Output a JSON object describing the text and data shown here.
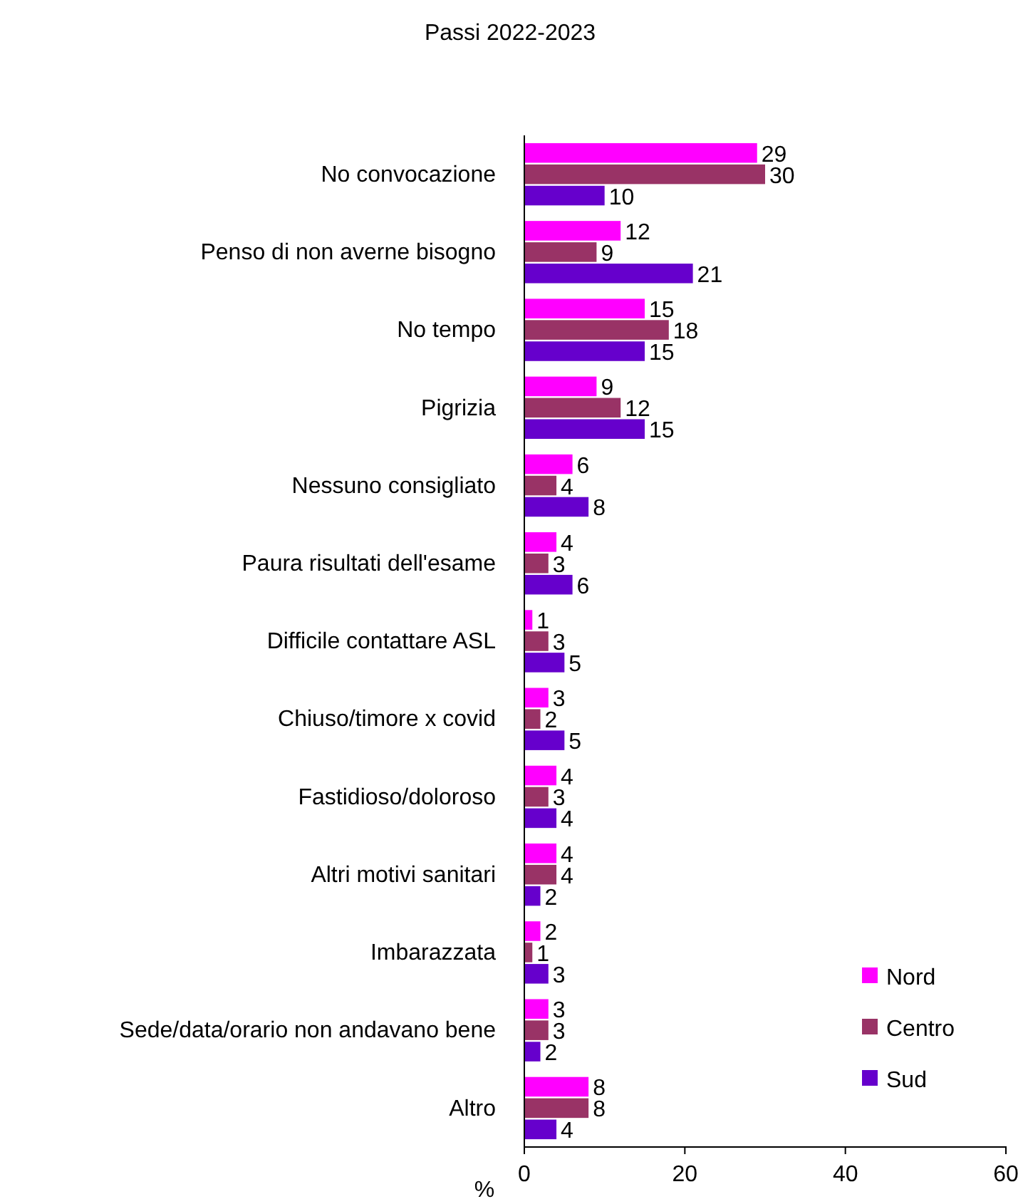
{
  "chart_data": {
    "type": "bar",
    "orientation": "horizontal",
    "title": "Passi 2022-2023",
    "xlabel": "%",
    "categories": [
      "No convocazione",
      "Penso di non averne bisogno",
      "No tempo",
      "Pigrizia",
      "Nessuno consigliato",
      "Paura risultati dell'esame",
      "Difficile contattare ASL",
      "Chiuso/timore x covid",
      "Fastidioso/doloroso",
      "Altri motivi sanitari",
      "Imbarazzata",
      "Sede/data/orario non andavano bene",
      "Altro"
    ],
    "series": [
      {
        "name": "Nord",
        "color": "#ff00ff",
        "values": [
          29,
          12,
          15,
          9,
          6,
          4,
          1,
          3,
          4,
          4,
          2,
          3,
          8
        ]
      },
      {
        "name": "Centro",
        "color": "#993366",
        "values": [
          30,
          9,
          18,
          12,
          4,
          3,
          3,
          2,
          3,
          4,
          1,
          3,
          8
        ]
      },
      {
        "name": "Sud",
        "color": "#6600cc",
        "values": [
          10,
          21,
          15,
          15,
          8,
          6,
          5,
          5,
          4,
          2,
          3,
          2,
          4
        ]
      }
    ],
    "xlim": [
      0,
      60
    ],
    "xticks": [
      0,
      20,
      40,
      60
    ],
    "data_labels": true,
    "legend": "bottom right",
    "grid": false
  }
}
